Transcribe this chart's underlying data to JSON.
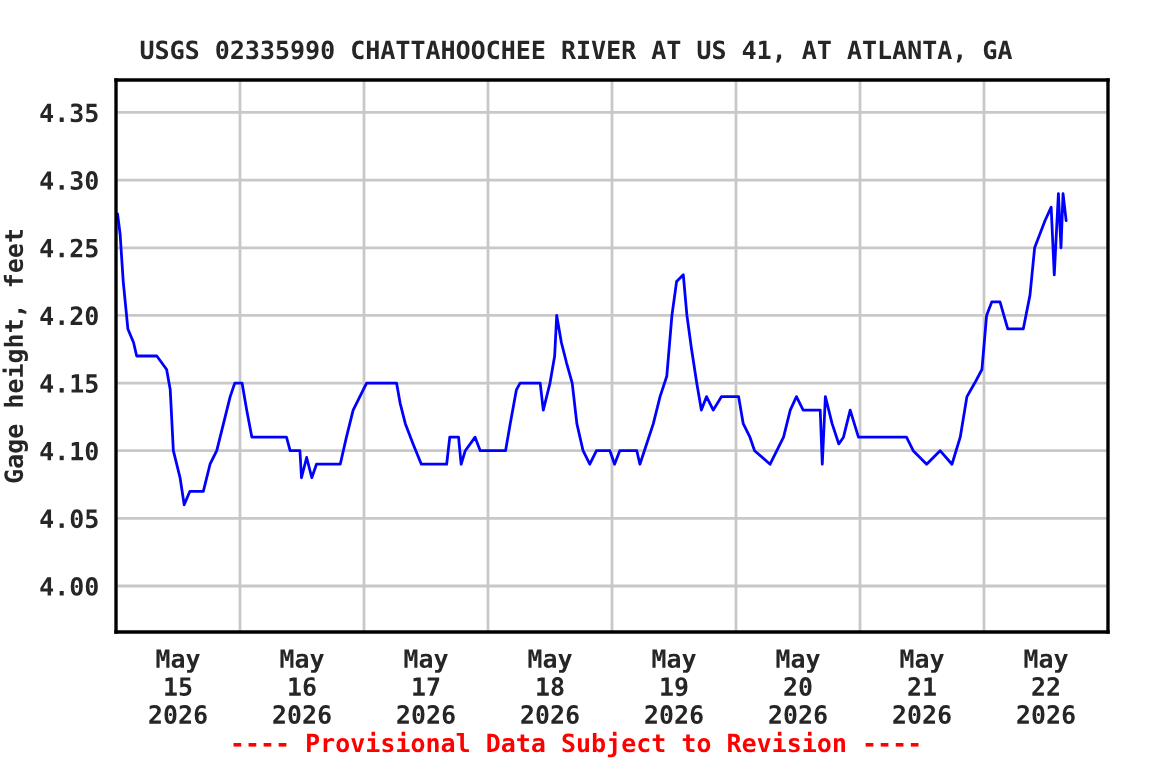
{
  "chart_data": {
    "type": "line",
    "title": "USGS 02335990 CHATTAHOOCHEE RIVER AT US 41, AT ATLANTA, GA",
    "ylabel": "Gage height, feet",
    "annotations": [
      "---- Provisional Data Subject to Revision ----"
    ],
    "xlim": [
      "2026-05-15T00:00",
      "2026-05-23T00:00"
    ],
    "ylim": [
      3.966,
      4.374
    ],
    "xticks": [
      {
        "value": "2026-05-15T00:00",
        "label": null
      },
      {
        "value": "2026-05-15T12:00",
        "label": "May\n15\n2026"
      },
      {
        "value": "2026-05-16T00:00",
        "label": null
      },
      {
        "value": "2026-05-16T12:00",
        "label": "May\n16\n2026"
      },
      {
        "value": "2026-05-17T00:00",
        "label": null
      },
      {
        "value": "2026-05-17T12:00",
        "label": "May\n17\n2026"
      },
      {
        "value": "2026-05-18T00:00",
        "label": null
      },
      {
        "value": "2026-05-18T12:00",
        "label": "May\n18\n2026"
      },
      {
        "value": "2026-05-19T00:00",
        "label": null
      },
      {
        "value": "2026-05-19T12:00",
        "label": "May\n19\n2026"
      },
      {
        "value": "2026-05-20T00:00",
        "label": null
      },
      {
        "value": "2026-05-20T12:00",
        "label": "May\n20\n2026"
      },
      {
        "value": "2026-05-21T00:00",
        "label": null
      },
      {
        "value": "2026-05-21T12:00",
        "label": "May\n21\n2026"
      },
      {
        "value": "2026-05-22T00:00",
        "label": null
      },
      {
        "value": "2026-05-22T12:00",
        "label": "May\n22\n2026"
      },
      {
        "value": "2026-05-23T00:00",
        "label": null
      }
    ],
    "yticks": [
      {
        "value": 4.0,
        "label": "4.00"
      },
      {
        "value": 4.05,
        "label": "4.05"
      },
      {
        "value": 4.1,
        "label": "4.10"
      },
      {
        "value": 4.15,
        "label": "4.15"
      },
      {
        "value": 4.2,
        "label": "4.20"
      },
      {
        "value": 4.25,
        "label": "4.25"
      },
      {
        "value": 4.3,
        "label": "4.30"
      },
      {
        "value": 4.35,
        "label": "4.35"
      }
    ],
    "grid": true,
    "marker": "none",
    "line_style": "solid",
    "series": [
      {
        "color": "#0000ff",
        "x": [
          "2026-05-15T00:18",
          "2026-05-15T00:48",
          "2026-05-15T01:24",
          "2026-05-15T02:18",
          "2026-05-15T03:24",
          "2026-05-15T04:00",
          "2026-05-15T07:54",
          "2026-05-15T09:48",
          "2026-05-15T10:30",
          "2026-05-15T11:06",
          "2026-05-15T12:24",
          "2026-05-15T13:12",
          "2026-05-15T14:18",
          "2026-05-15T16:54",
          "2026-05-15T18:12",
          "2026-05-15T19:30",
          "2026-05-15T20:48",
          "2026-05-15T22:06",
          "2026-05-15T23:00",
          "2026-05-16T00:24",
          "2026-05-16T01:18",
          "2026-05-16T02:18",
          "2026-05-16T09:00",
          "2026-05-16T09:42",
          "2026-05-16T11:36",
          "2026-05-16T11:54",
          "2026-05-16T12:54",
          "2026-05-16T13:54",
          "2026-05-16T14:48",
          "2026-05-16T19:24",
          "2026-05-16T20:36",
          "2026-05-16T21:54",
          "2026-05-16T23:12",
          "2026-05-17T00:30",
          "2026-05-17T04:24",
          "2026-05-17T06:18",
          "2026-05-17T07:00",
          "2026-05-17T08:00",
          "2026-05-17T09:30",
          "2026-05-17T11:06",
          "2026-05-17T16:00",
          "2026-05-17T16:36",
          "2026-05-17T18:18",
          "2026-05-17T18:48",
          "2026-05-17T19:36",
          "2026-05-17T21:30",
          "2026-05-17T22:30",
          "2026-05-18T03:24",
          "2026-05-18T04:18",
          "2026-05-18T05:30",
          "2026-05-18T06:12",
          "2026-05-18T10:06",
          "2026-05-18T10:42",
          "2026-05-18T12:00",
          "2026-05-18T12:54",
          "2026-05-18T13:18",
          "2026-05-18T14:12",
          "2026-05-18T15:12",
          "2026-05-18T16:18",
          "2026-05-18T17:12",
          "2026-05-18T18:24",
          "2026-05-18T19:42",
          "2026-05-18T21:00",
          "2026-05-18T23:36",
          "2026-05-19T00:30",
          "2026-05-19T01:30",
          "2026-05-19T04:48",
          "2026-05-19T05:24",
          "2026-05-19T06:42",
          "2026-05-19T08:00",
          "2026-05-19T09:18",
          "2026-05-19T10:36",
          "2026-05-19T11:36",
          "2026-05-19T12:30",
          "2026-05-19T13:48",
          "2026-05-19T14:30",
          "2026-05-19T15:24",
          "2026-05-19T16:24",
          "2026-05-19T17:18",
          "2026-05-19T18:18",
          "2026-05-19T19:36",
          "2026-05-19T21:12",
          "2026-05-20T00:30",
          "2026-05-20T01:24",
          "2026-05-20T02:42",
          "2026-05-20T03:36",
          "2026-05-20T06:36",
          "2026-05-20T09:12",
          "2026-05-20T10:30",
          "2026-05-20T11:42",
          "2026-05-20T13:00",
          "2026-05-20T16:18",
          "2026-05-20T16:42",
          "2026-05-20T17:18",
          "2026-05-20T18:36",
          "2026-05-20T19:54",
          "2026-05-20T20:48",
          "2026-05-20T22:06",
          "2026-05-20T23:42",
          "2026-05-21T03:12",
          "2026-05-21T09:00",
          "2026-05-21T10:18",
          "2026-05-21T12:54",
          "2026-05-21T15:30",
          "2026-05-21T17:48",
          "2026-05-21T19:24",
          "2026-05-21T20:42",
          "2026-05-21T22:12",
          "2026-05-21T23:36",
          "2026-05-22T00:30",
          "2026-05-22T01:30",
          "2026-05-22T03:06",
          "2026-05-22T04:36",
          "2026-05-22T07:36",
          "2026-05-22T08:54",
          "2026-05-22T09:48",
          "2026-05-22T10:48",
          "2026-05-22T11:48",
          "2026-05-22T13:00",
          "2026-05-22T13:36",
          "2026-05-22T14:24",
          "2026-05-22T14:54",
          "2026-05-22T15:18",
          "2026-05-22T15:54"
        ],
        "values": [
          4.275,
          4.26,
          4.225,
          4.19,
          4.18,
          4.17,
          4.17,
          4.16,
          4.145,
          4.1,
          4.08,
          4.06,
          4.07,
          4.07,
          4.09,
          4.1,
          4.12,
          4.14,
          4.15,
          4.15,
          4.13,
          4.11,
          4.11,
          4.1,
          4.1,
          4.08,
          4.095,
          4.08,
          4.09,
          4.09,
          4.11,
          4.13,
          4.14,
          4.15,
          4.15,
          4.15,
          4.135,
          4.12,
          4.105,
          4.09,
          4.09,
          4.11,
          4.11,
          4.09,
          4.1,
          4.11,
          4.1,
          4.1,
          4.12,
          4.145,
          4.15,
          4.15,
          4.13,
          4.15,
          4.17,
          4.2,
          4.18,
          4.165,
          4.15,
          4.12,
          4.1,
          4.09,
          4.1,
          4.1,
          4.09,
          4.1,
          4.1,
          4.09,
          4.105,
          4.12,
          4.14,
          4.155,
          4.2,
          4.225,
          4.23,
          4.2,
          4.175,
          4.15,
          4.13,
          4.14,
          4.13,
          4.14,
          4.14,
          4.12,
          4.11,
          4.1,
          4.09,
          4.11,
          4.13,
          4.14,
          4.13,
          4.13,
          4.09,
          4.14,
          4.12,
          4.105,
          4.11,
          4.13,
          4.11,
          4.11,
          4.11,
          4.1,
          4.09,
          4.1,
          4.09,
          4.11,
          4.14,
          4.15,
          4.16,
          4.2,
          4.21,
          4.21,
          4.19,
          4.19,
          4.215,
          4.25,
          4.26,
          4.27,
          4.28,
          4.23,
          4.29,
          4.25,
          4.29,
          4.27
        ]
      }
    ]
  }
}
